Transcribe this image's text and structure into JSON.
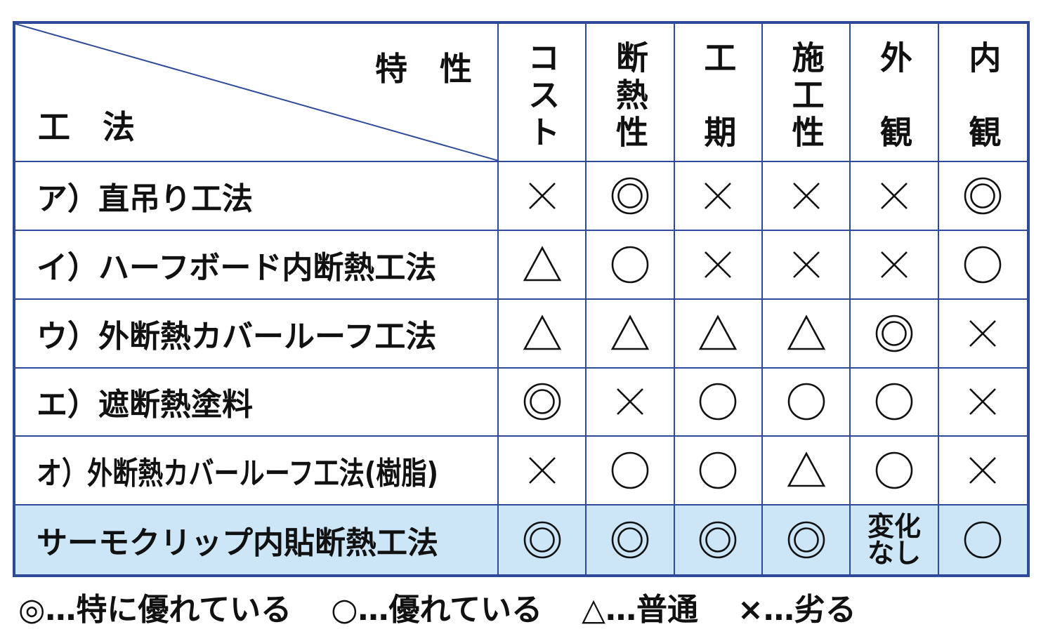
{
  "corner": {
    "top_label": "特　性",
    "bottom_label": "工　法"
  },
  "columns": [
    "コスト",
    "断熱性",
    "工期",
    "施工性",
    "外観",
    "内観"
  ],
  "rows": [
    {
      "label": "ア）直吊り工法",
      "values": [
        "×",
        "◎",
        "×",
        "×",
        "×",
        "◎"
      ]
    },
    {
      "label": "イ）ハーフボード内断熱工法",
      "values": [
        "△",
        "○",
        "×",
        "×",
        "×",
        "○"
      ]
    },
    {
      "label": "ウ）外断熱カバールーフ工法",
      "values": [
        "△",
        "△",
        "△",
        "△",
        "◎",
        "×"
      ]
    },
    {
      "label": "エ）遮断熱塗料",
      "values": [
        "◎",
        "×",
        "○",
        "○",
        "○",
        "×"
      ]
    },
    {
      "label": "オ）外断熱カバールーフ工法(樹脂)",
      "values": [
        "×",
        "○",
        "○",
        "△",
        "○",
        "×"
      ]
    },
    {
      "label": "サーモクリップ内貼断熱工法",
      "values": [
        "◎",
        "◎",
        "◎",
        "◎",
        "変化なし",
        "○"
      ],
      "highlighted": true
    }
  ],
  "legend": [
    {
      "text": "◎…特に優れている"
    },
    {
      "text": "○…優れている"
    },
    {
      "text": "△…普通"
    },
    {
      "text": "×…劣る"
    }
  ],
  "colors": {
    "border": "#2e4a9a",
    "highlight_row": "#cce6f7",
    "symbol": "#111111"
  }
}
